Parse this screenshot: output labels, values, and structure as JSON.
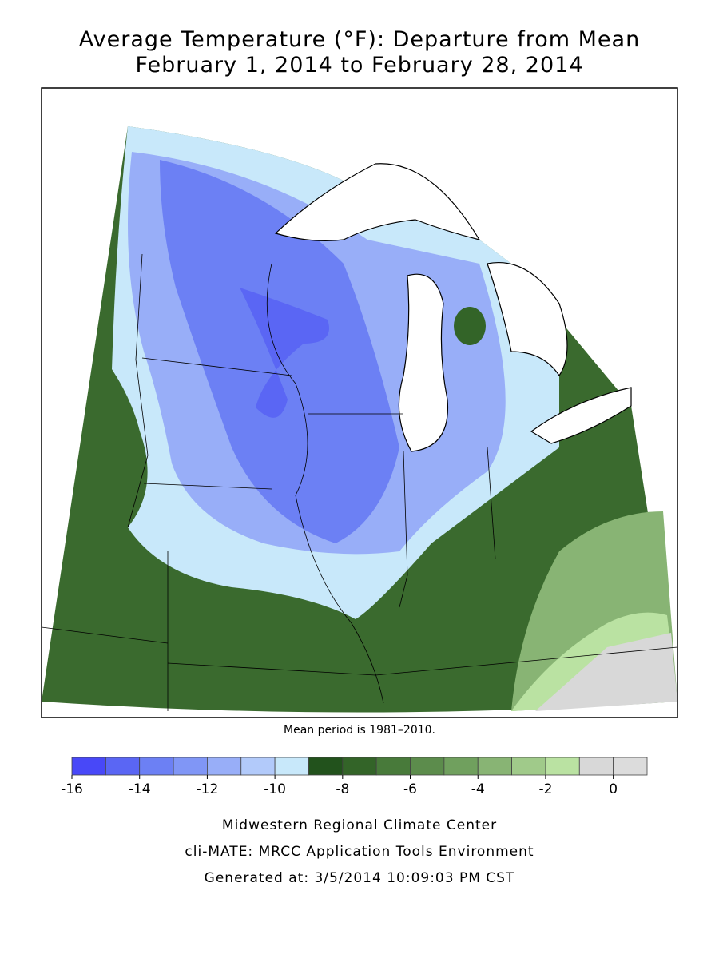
{
  "header": {
    "title": "Average Temperature (°F): Departure from Mean",
    "subtitle": "February 1, 2014 to February 28, 2014"
  },
  "note": "Mean period is 1981–2010.",
  "legend": {
    "bins": [
      -16,
      -15,
      -14,
      -13,
      -12,
      -11,
      -10,
      -9,
      -8,
      -7,
      -6,
      -5,
      -4,
      -3,
      -2,
      -1,
      0,
      1
    ],
    "colors": [
      "#4848f8",
      "#5a66f4",
      "#6c80f4",
      "#8096f6",
      "#98aef8",
      "#b2cafa",
      "#c8e8fa",
      "#22521c",
      "#336428",
      "#487a3a",
      "#5c8c4c",
      "#70a05e",
      "#88b474",
      "#a0ca8a",
      "#bae2a2",
      "#d8d8d8",
      "#dcdcdc"
    ],
    "ticks": [
      -16,
      -14,
      -12,
      -10,
      -8,
      -6,
      -4,
      -2,
      0
    ]
  },
  "footer": [
    "Midwestern Regional Climate Center",
    "cli-MATE: MRCC Application Tools Environment",
    "Generated at: 3/5/2014 10:09:03 PM CST"
  ]
}
